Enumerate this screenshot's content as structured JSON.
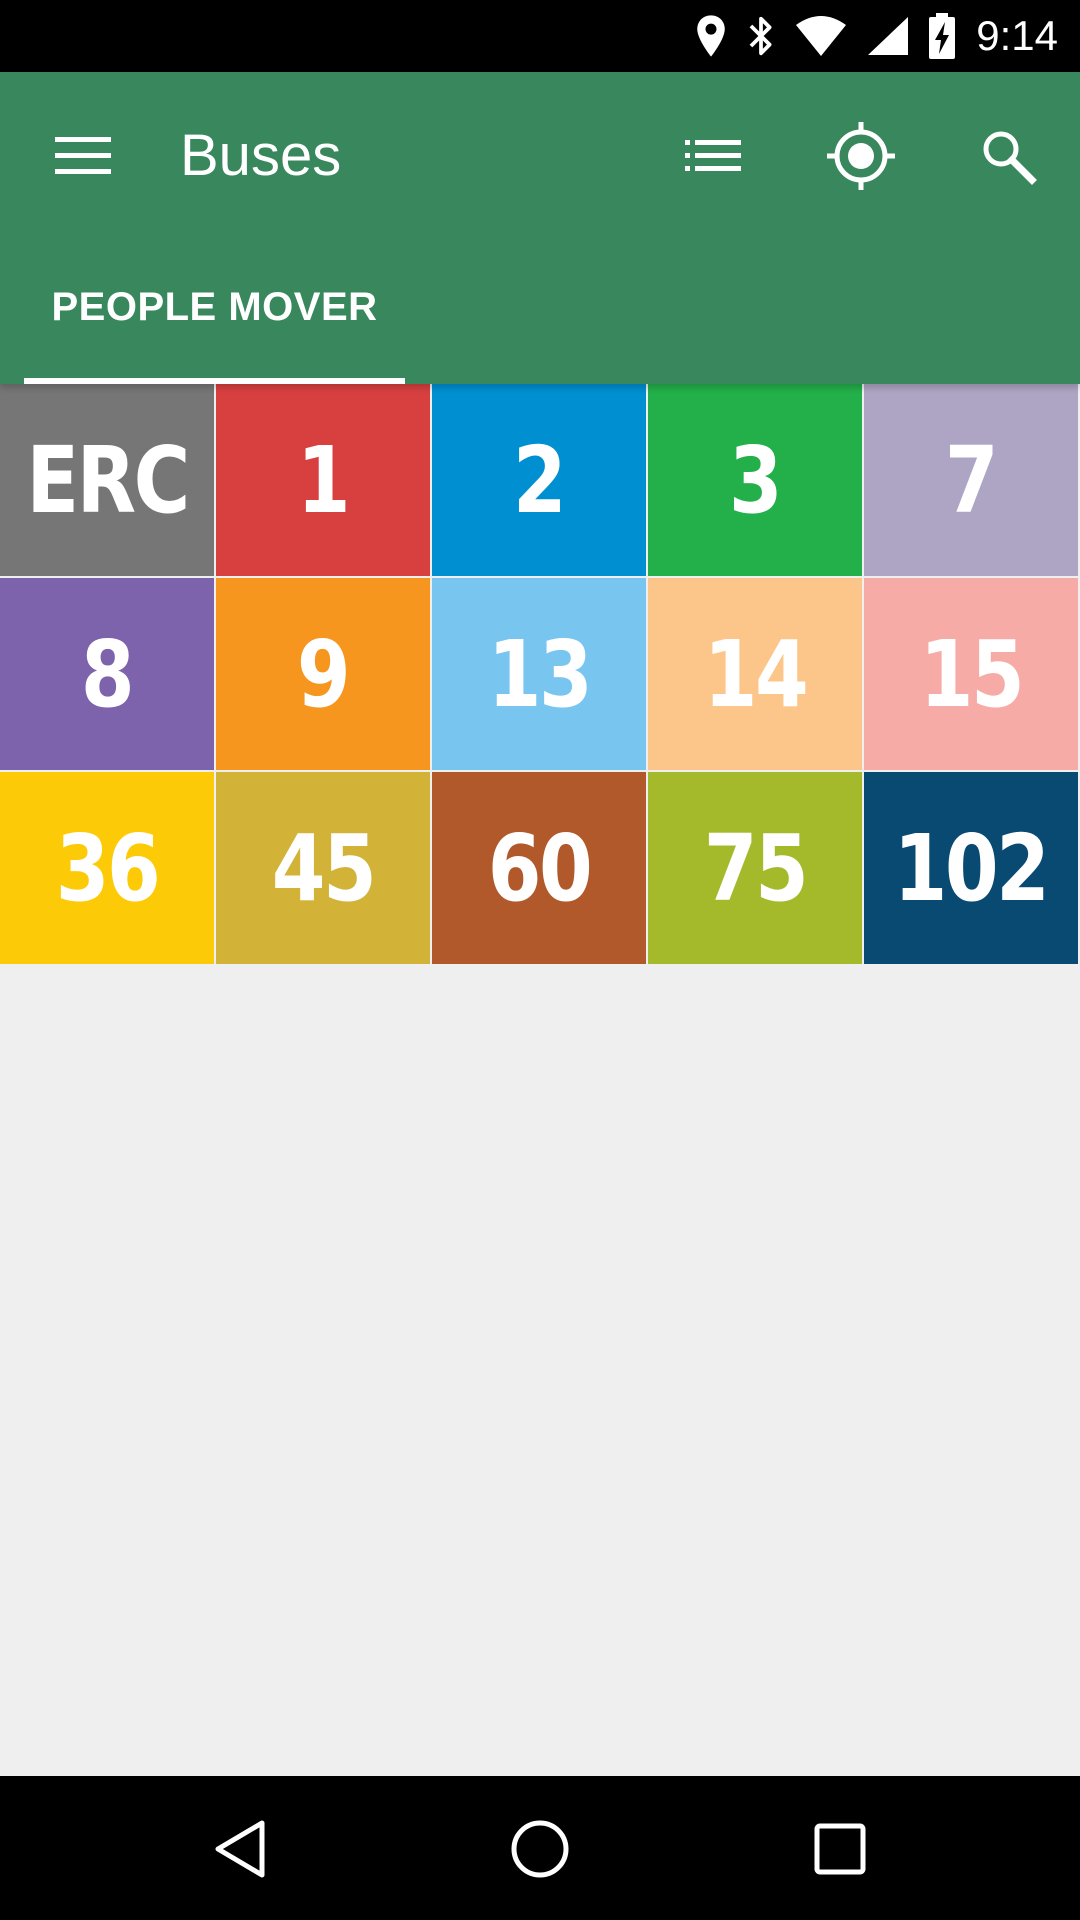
{
  "status_bar": {
    "time": "9:14",
    "icons": [
      "location-icon",
      "bluetooth-icon",
      "wifi-icon",
      "signal-icon",
      "battery-charging-icon"
    ]
  },
  "app_bar": {
    "title": "Buses",
    "background": "#38875d",
    "actions": [
      "list-icon",
      "my-location-icon",
      "search-icon"
    ]
  },
  "tabs": [
    {
      "label": "PEOPLE MOVER",
      "selected": true
    }
  ],
  "routes": [
    {
      "label": "ERC",
      "color": "#767676"
    },
    {
      "label": "1",
      "color": "#d84040"
    },
    {
      "label": "2",
      "color": "#0090d2"
    },
    {
      "label": "3",
      "color": "#23b04a"
    },
    {
      "label": "7",
      "color": "#aea5c4"
    },
    {
      "label": "8",
      "color": "#7c63ab"
    },
    {
      "label": "9",
      "color": "#f6961f"
    },
    {
      "label": "13",
      "color": "#78c5ef"
    },
    {
      "label": "14",
      "color": "#fcc68a"
    },
    {
      "label": "15",
      "color": "#f6aba6"
    },
    {
      "label": "36",
      "color": "#fdca08"
    },
    {
      "label": "45",
      "color": "#d2b338"
    },
    {
      "label": "60",
      "color": "#b1592a"
    },
    {
      "label": "75",
      "color": "#a5ba2a"
    },
    {
      "label": "102",
      "color": "#084a72"
    }
  ],
  "nav_bar": {
    "buttons": [
      "back-icon",
      "home-icon",
      "recents-icon"
    ]
  }
}
